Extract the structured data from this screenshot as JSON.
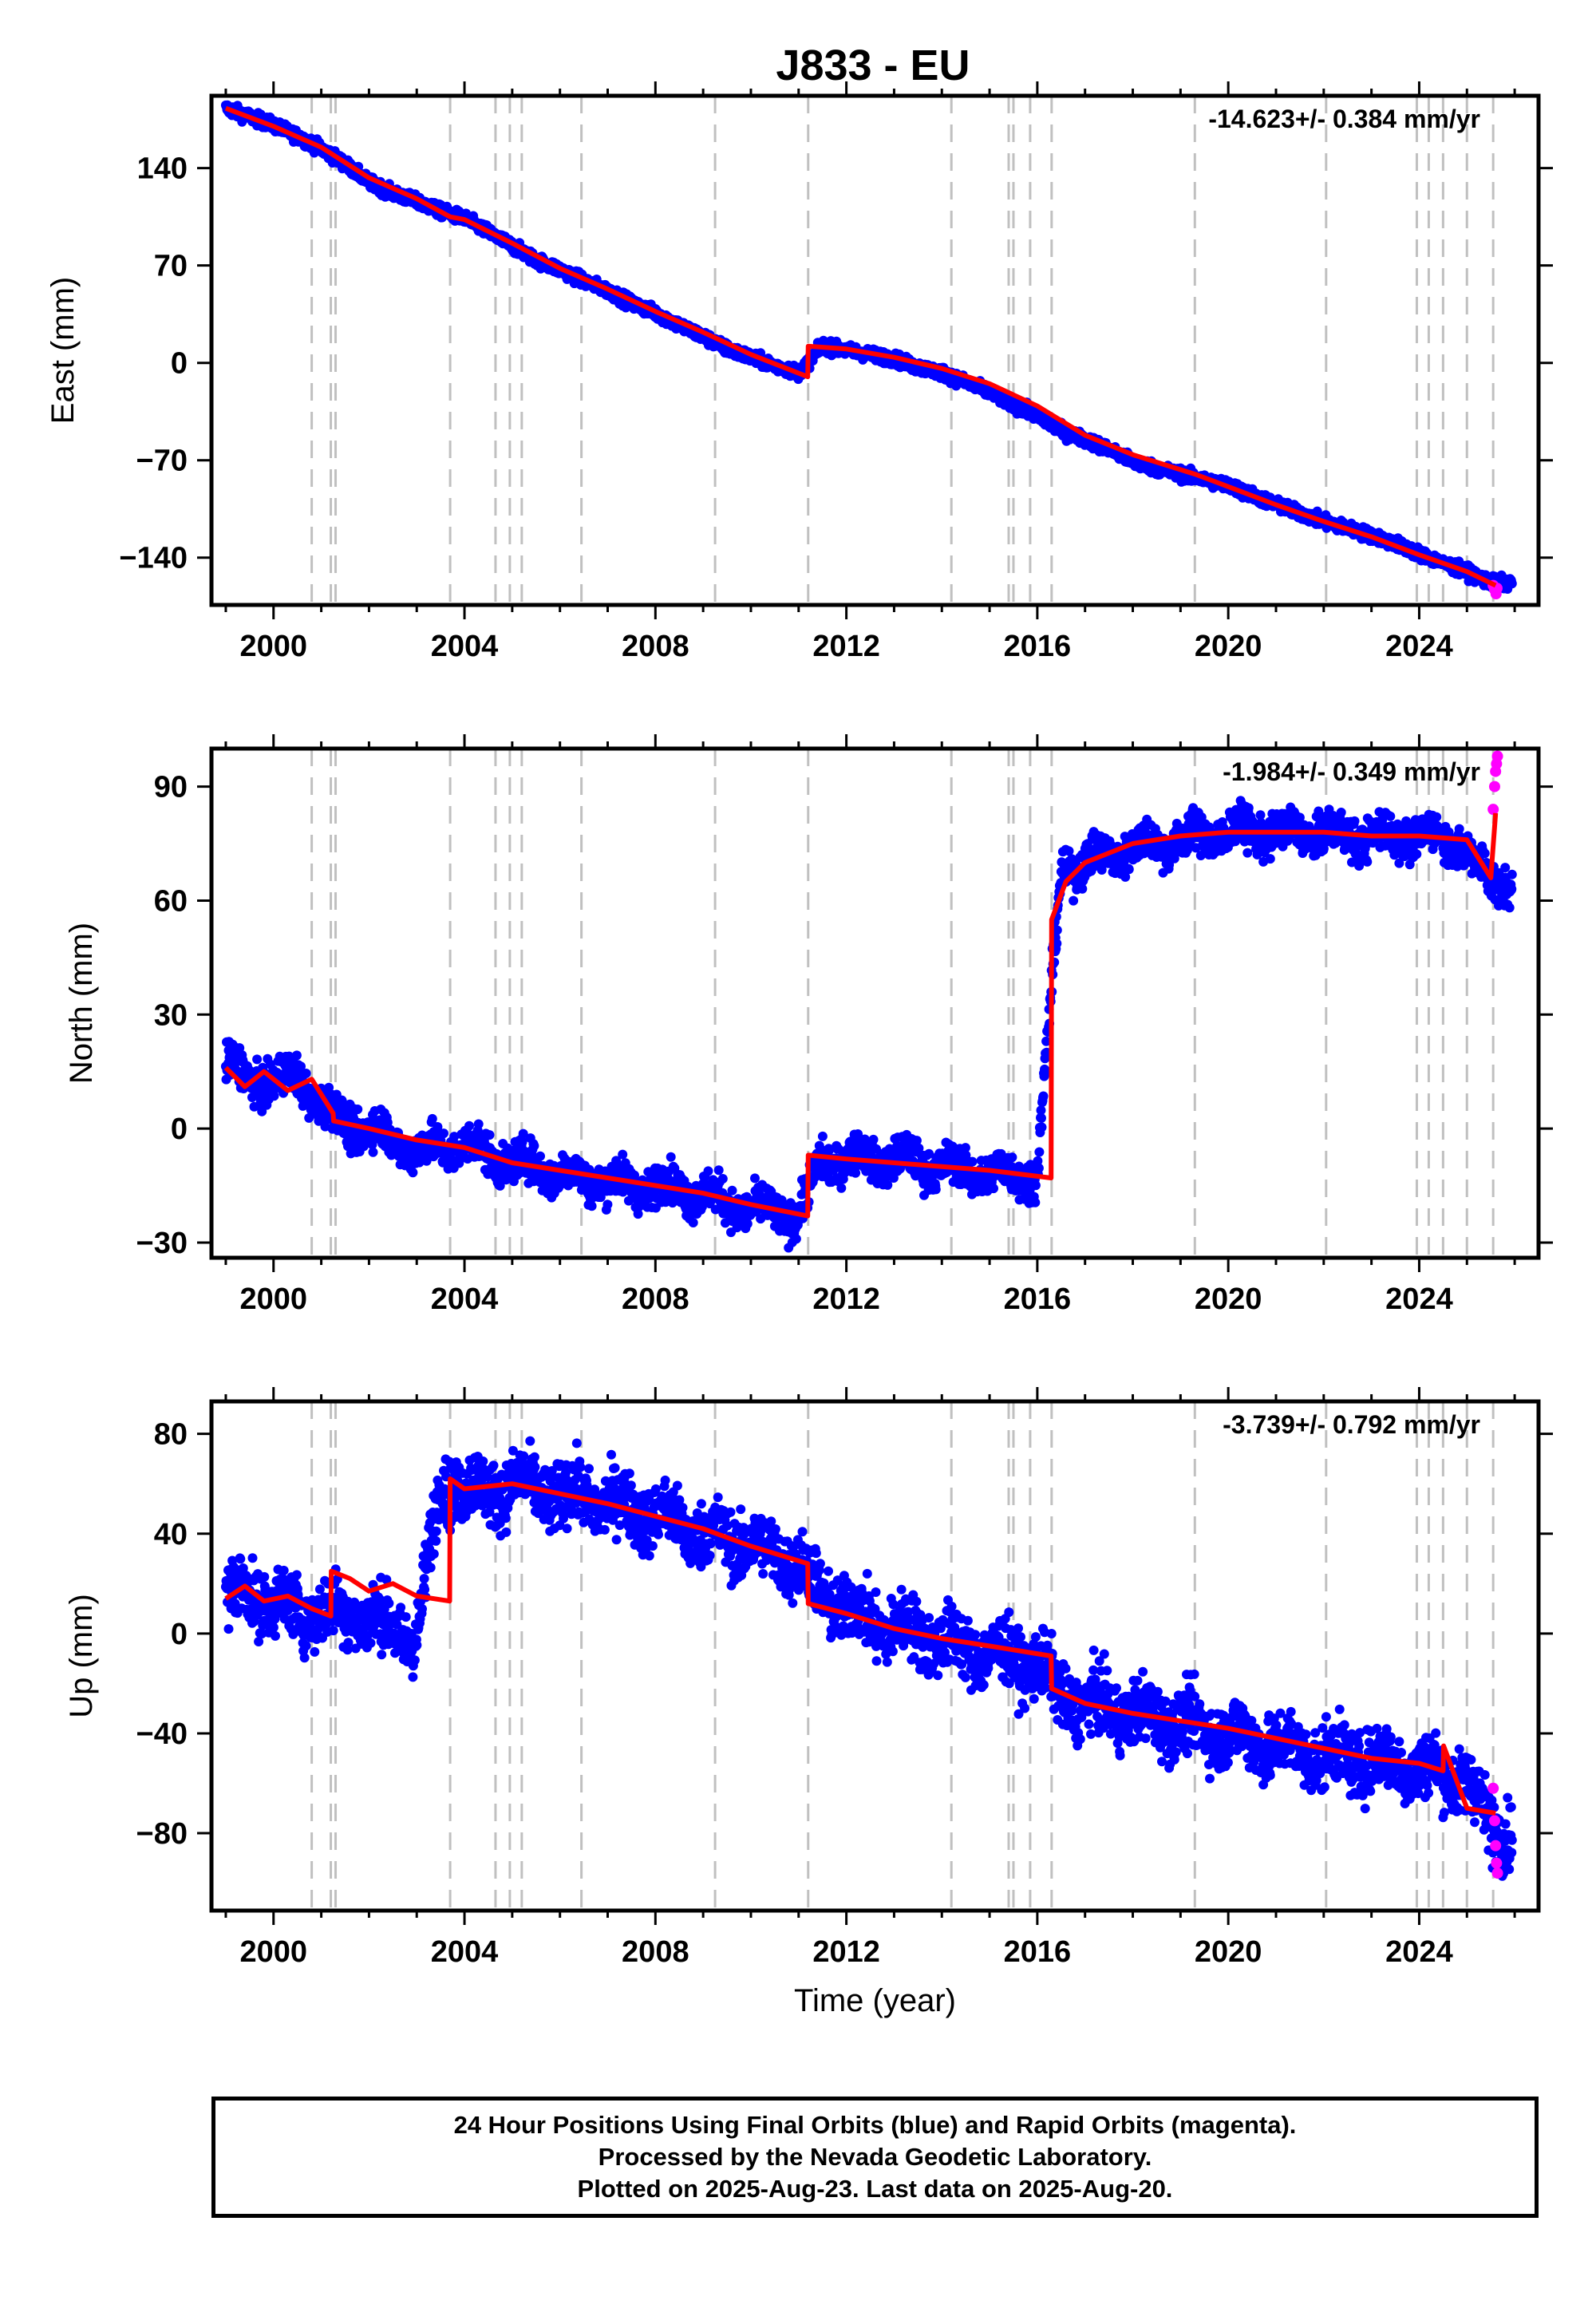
{
  "title": "J833 - EU",
  "colors": {
    "final_orbits": "#0000ff",
    "rapid_orbits": "#ff00ff",
    "model": "#ff0000",
    "event_lines": "#c0c0c0",
    "frame": "#000000"
  },
  "footer": {
    "line1": "24 Hour Positions Using Final Orbits (blue) and Rapid Orbits (magenta).",
    "line2": "Processed by the Nevada Geodetic Laboratory.",
    "line3": "Plotted on 2025-Aug-23. Last data on 2025-Aug-20."
  },
  "chart_data": [
    {
      "type": "scatter",
      "ylabel": "East (mm)",
      "xlabel": "",
      "rate": "-14.623+/- 0.384 mm/yr",
      "xlim": [
        1998.7,
        2026.5
      ],
      "ylim": [
        -174,
        192
      ],
      "x_ticks": [
        2000,
        2004,
        2008,
        2012,
        2016,
        2020,
        2024
      ],
      "y_ticks": [
        140,
        70,
        0,
        -70,
        -140
      ],
      "y_tick_labels": [
        "140",
        "70",
        "0",
        "−70",
        "−140"
      ],
      "grid": false,
      "event_lines": [
        2000.8,
        2001.2,
        2001.3,
        2003.7,
        2004.65,
        2004.95,
        2005.2,
        2006.45,
        2009.25,
        2011.2,
        2014.2,
        2015.4,
        2015.5,
        2015.85,
        2016.3,
        2019.3,
        2022.05,
        2023.95,
        2024.2,
        2024.5,
        2025.0,
        2025.55
      ],
      "series": [
        {
          "name": "Final Orbits (blue)",
          "x": [
            1999.0,
            1999.5,
            2000.0,
            2000.5,
            2001.0,
            2001.5,
            2002.0,
            2002.5,
            2003.0,
            2003.5,
            2004.0,
            2004.5,
            2005.0,
            2005.5,
            2006.0,
            2006.5,
            2007.0,
            2007.5,
            2008.0,
            2008.5,
            2009.0,
            2009.5,
            2010.0,
            2010.5,
            2011.0,
            2011.5,
            2012.0,
            2012.5,
            2013.0,
            2013.5,
            2014.0,
            2014.5,
            2015.0,
            2015.5,
            2016.0,
            2016.5,
            2017.0,
            2017.5,
            2018.0,
            2018.5,
            2019.0,
            2019.5,
            2020.0,
            2020.5,
            2021.0,
            2021.5,
            2022.0,
            2022.5,
            2023.0,
            2023.5,
            2024.0,
            2024.5,
            2025.0,
            2025.5
          ],
          "y": [
            183,
            177,
            171,
            163,
            154,
            143,
            130,
            122,
            116,
            109,
            104,
            94,
            84,
            74,
            67,
            59,
            52,
            43,
            36,
            27,
            19,
            10,
            4,
            -2,
            -7,
            12,
            9,
            6,
            3,
            -3,
            -7,
            -14,
            -21,
            -30,
            -38,
            -49,
            -55,
            -62,
            -71,
            -76,
            -80,
            -84,
            -88,
            -95,
            -102,
            -108,
            -114,
            -119,
            -124,
            -130,
            -137,
            -144,
            -150,
            -158
          ]
        },
        {
          "name": "Rapid Orbits (magenta)",
          "x": [
            2025.55,
            2025.58,
            2025.61,
            2025.63
          ],
          "y": [
            -160,
            -163,
            -166,
            -162
          ]
        },
        {
          "name": "Model",
          "x": [
            1999.0,
            2000.0,
            2001.0,
            2002.0,
            2003.0,
            2003.7,
            2004.0,
            2005.0,
            2006.0,
            2007.0,
            2008.0,
            2009.0,
            2010.0,
            2011.19,
            2011.2,
            2012.0,
            2013.0,
            2014.0,
            2015.0,
            2016.0,
            2017.0,
            2018.0,
            2019.3,
            2020.0,
            2021.0,
            2022.0,
            2023.0,
            2024.0,
            2025.0,
            2025.6
          ],
          "y": [
            183,
            170,
            155,
            133,
            118,
            105,
            103,
            86,
            68,
            53,
            37,
            22,
            6,
            -10,
            12,
            10,
            4,
            -4,
            -15,
            -31,
            -52,
            -66,
            -80,
            -89,
            -102,
            -114,
            -125,
            -138,
            -150,
            -160
          ]
        }
      ]
    },
    {
      "type": "scatter",
      "ylabel": "North (mm)",
      "xlabel": "",
      "rate": "-1.984+/- 0.349 mm/yr",
      "xlim": [
        1998.7,
        2026.5
      ],
      "ylim": [
        -34,
        100
      ],
      "x_ticks": [
        2000,
        2004,
        2008,
        2012,
        2016,
        2020,
        2024
      ],
      "y_ticks": [
        90,
        60,
        30,
        0,
        -30
      ],
      "y_tick_labels": [
        "90",
        "60",
        "30",
        "0",
        "−30"
      ],
      "grid": false,
      "event_lines": [
        2000.8,
        2001.2,
        2001.3,
        2003.7,
        2004.65,
        2004.95,
        2005.2,
        2006.45,
        2009.25,
        2011.2,
        2014.2,
        2015.4,
        2015.5,
        2015.85,
        2016.3,
        2019.3,
        2022.05,
        2023.95,
        2024.2,
        2024.5,
        2025.0,
        2025.55
      ],
      "series": [
        {
          "name": "Final Orbits (blue)",
          "x": [
            1999.0,
            1999.5,
            2000.0,
            2000.5,
            2001.0,
            2001.5,
            2002.0,
            2002.5,
            2003.0,
            2003.5,
            2004.0,
            2004.5,
            2005.0,
            2005.5,
            2006.0,
            2006.5,
            2007.0,
            2007.5,
            2008.0,
            2008.5,
            2009.0,
            2009.5,
            2010.0,
            2010.5,
            2011.0,
            2011.5,
            2012.0,
            2012.5,
            2013.0,
            2013.5,
            2014.0,
            2014.5,
            2015.0,
            2015.5,
            2016.0,
            2016.5,
            2017.0,
            2017.5,
            2018.0,
            2018.5,
            2019.0,
            2019.5,
            2020.0,
            2020.5,
            2021.0,
            2021.5,
            2022.0,
            2022.5,
            2023.0,
            2023.5,
            2024.0,
            2024.5,
            2025.0,
            2025.5
          ],
          "y": [
            17,
            13,
            12,
            14,
            6,
            1,
            0,
            -3,
            -6,
            -5,
            -4,
            -7,
            -9,
            -10,
            -12,
            -13,
            -14,
            -15,
            -15,
            -16,
            -17,
            -20,
            -21,
            -22,
            -23,
            -8,
            -8,
            -8,
            -8,
            -9,
            -10,
            -11,
            -12,
            -12,
            -12,
            68,
            70,
            72,
            74,
            75,
            76,
            77,
            78,
            78,
            78,
            78,
            78,
            77,
            77,
            77,
            77,
            77,
            73,
            65
          ]
        },
        {
          "name": "Rapid Orbits (magenta)",
          "x": [
            2025.55,
            2025.58,
            2025.6,
            2025.62,
            2025.64
          ],
          "y": [
            84,
            90,
            94,
            96,
            98
          ]
        },
        {
          "name": "Model",
          "x": [
            1999.0,
            1999.4,
            1999.8,
            2000.3,
            2000.8,
            2001.25,
            2001.26,
            2002.0,
            2003.0,
            2004.0,
            2005.0,
            2006.0,
            2007.0,
            2008.0,
            2009.0,
            2010.0,
            2011.19,
            2011.2,
            2012.0,
            2013.0,
            2014.0,
            2015.0,
            2016.29,
            2016.3,
            2016.6,
            2017.0,
            2018.0,
            2019.0,
            2020.0,
            2021.0,
            2022.0,
            2023.0,
            2024.0,
            2025.0,
            2025.5,
            2025.6
          ],
          "y": [
            16,
            11,
            15,
            10,
            13,
            4,
            2,
            0,
            -3,
            -5,
            -9,
            -11,
            -13,
            -15,
            -17,
            -20,
            -23,
            -7,
            -8,
            -9,
            -10,
            -11,
            -13,
            55,
            65,
            70,
            75,
            77,
            78,
            78,
            78,
            77,
            77,
            76,
            66,
            83
          ]
        }
      ]
    },
    {
      "type": "scatter",
      "ylabel": "Up (mm)",
      "xlabel": "Time (year)",
      "rate": "-3.739+/- 0.792 mm/yr",
      "xlim": [
        1998.7,
        2026.5
      ],
      "ylim": [
        -111,
        93
      ],
      "x_ticks": [
        2000,
        2004,
        2008,
        2012,
        2016,
        2020,
        2024
      ],
      "y_ticks": [
        80,
        40,
        0,
        -40,
        -80
      ],
      "y_tick_labels": [
        "80",
        "40",
        "0",
        "−40",
        "−80"
      ],
      "grid": false,
      "event_lines": [
        2000.8,
        2001.2,
        2001.3,
        2003.7,
        2004.65,
        2004.95,
        2005.2,
        2006.45,
        2009.25,
        2011.2,
        2014.2,
        2015.4,
        2015.5,
        2015.85,
        2016.3,
        2019.3,
        2022.05,
        2023.95,
        2024.2,
        2024.5,
        2025.0,
        2025.55
      ],
      "series": [
        {
          "name": "Final Orbits (blue)",
          "x": [
            1999.0,
            1999.5,
            2000.0,
            2000.5,
            2001.0,
            2001.5,
            2002.0,
            2002.5,
            2003.0,
            2003.5,
            2004.0,
            2004.5,
            2005.0,
            2005.5,
            2006.0,
            2006.5,
            2007.0,
            2007.5,
            2008.0,
            2008.5,
            2009.0,
            2009.5,
            2010.0,
            2010.5,
            2011.0,
            2011.5,
            2012.0,
            2012.5,
            2013.0,
            2013.5,
            2014.0,
            2014.5,
            2015.0,
            2015.5,
            2016.0,
            2016.5,
            2017.0,
            2017.5,
            2018.0,
            2018.5,
            2019.0,
            2019.5,
            2020.0,
            2020.5,
            2021.0,
            2021.5,
            2022.0,
            2022.5,
            2023.0,
            2023.5,
            2024.0,
            2024.5,
            2025.0,
            2025.5
          ],
          "y": [
            15,
            17,
            12,
            10,
            8,
            9,
            6,
            2,
            -2,
            60,
            58,
            57,
            60,
            58,
            55,
            55,
            52,
            50,
            47,
            44,
            40,
            38,
            35,
            32,
            28,
            15,
            10,
            5,
            2,
            0,
            -3,
            -6,
            -8,
            -10,
            -12,
            -25,
            -28,
            -30,
            -32,
            -34,
            -36,
            -38,
            -40,
            -43,
            -45,
            -47,
            -49,
            -50,
            -51,
            -52,
            -54,
            -56,
            -58,
            -78
          ]
        },
        {
          "name": "Rapid Orbits (magenta)",
          "x": [
            2025.55,
            2025.58,
            2025.6,
            2025.62,
            2025.64
          ],
          "y": [
            -62,
            -75,
            -85,
            -92,
            -96
          ]
        },
        {
          "name": "Model",
          "x": [
            1999.0,
            1999.4,
            1999.8,
            2000.3,
            2000.8,
            2001.2,
            2001.21,
            2001.6,
            2002.0,
            2002.5,
            2003.0,
            2003.69,
            2003.7,
            2004.0,
            2005.0,
            2006.0,
            2007.0,
            2008.0,
            2009.0,
            2010.0,
            2011.19,
            2011.2,
            2012.0,
            2013.0,
            2014.0,
            2015.0,
            2016.29,
            2016.3,
            2017.0,
            2018.0,
            2019.0,
            2020.0,
            2021.0,
            2022.0,
            2023.0,
            2024.0,
            2024.5,
            2024.51,
            2025.0,
            2025.6
          ],
          "y": [
            14,
            19,
            13,
            15,
            10,
            7,
            25,
            22,
            17,
            20,
            15,
            13,
            62,
            58,
            60,
            56,
            52,
            47,
            42,
            35,
            28,
            12,
            8,
            2,
            -2,
            -5,
            -9,
            -22,
            -28,
            -32,
            -35,
            -38,
            -42,
            -46,
            -50,
            -52,
            -55,
            -45,
            -70,
            -72
          ]
        }
      ]
    }
  ]
}
